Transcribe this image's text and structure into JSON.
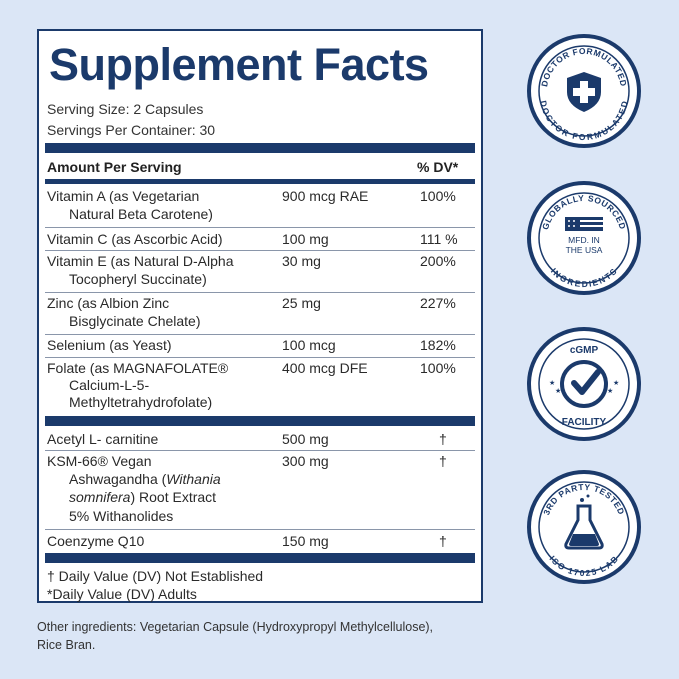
{
  "facts": {
    "title": "Supplement Facts",
    "serving_size": "Serving Size: 2 Capsules",
    "servings_per_container": "Servings Per Container: 30",
    "header_amount": "Amount Per Serving",
    "header_dv": "% DV*",
    "rows": [
      {
        "name": "Vitamin A (as Vegetarian",
        "name2": "Natural Beta Carotene)",
        "amount": "900 mcg RAE",
        "dv": "100%"
      },
      {
        "name": "Vitamin C (as Ascorbic Acid)",
        "name2": "",
        "amount": "100 mg",
        "dv": "111 %"
      },
      {
        "name": "Vitamin E (as Natural D-Alpha",
        "name2": "Tocopheryl Succinate)",
        "amount": "30   mg",
        "dv": "200%"
      },
      {
        "name": "Zinc (as Albion Zinc",
        "name2": "Bisglycinate Chelate)",
        "amount": "25   mg",
        "dv": "227%"
      },
      {
        "name": "Selenium (as Yeast)",
        "name2": "",
        "amount": "100 mcg",
        "dv": "182%"
      },
      {
        "name": "Folate (as MAGNAFOLATE®",
        "name2": "Calcium-L-5-",
        "name3": "Methyltetrahydrofolate)",
        "amount": "400 mcg DFE",
        "dv": "100%"
      },
      {
        "name": "Acetyl L- carnitine",
        "name2": "",
        "amount": "500 mg",
        "dv": "†"
      },
      {
        "name": "KSM-66® Vegan",
        "name2": "Ashwagandha (",
        "name2_italic": "Withania",
        "name3_italic": "somnifera",
        "name3": ") Root Extract",
        "name4": "5% Withanolides",
        "amount": "300 mg",
        "dv": "†"
      },
      {
        "name": "Coenzyme Q10",
        "name2": "",
        "amount": "150 mg",
        "dv": "†"
      }
    ],
    "footnote_1": "† Daily Value (DV) Not Established",
    "footnote_2": "*Daily Value (DV) Adults"
  },
  "other_ingredients": {
    "line1": "Other ingredients: Vegetarian Capsule (Hydroxypropyl Methylcellulose),",
    "line2": "Rice Bran."
  },
  "badges": [
    {
      "top": "DOCTOR FORMULATED",
      "bottom": "DOCTOR FORMULATED",
      "icon": "medical-cross-shield-icon"
    },
    {
      "top": "GLOBALLY SOURCED",
      "center": "MFD. IN THE USA",
      "center_l1": "MFD. IN",
      "center_l2": "THE USA",
      "bottom": "INGREDIENTS",
      "icon": "usa-flag-icon"
    },
    {
      "top": "cGMP",
      "bottom": "FACILITY",
      "icon": "checkmark-shield-icon"
    },
    {
      "top": "3RD PARTY TESTED",
      "bottom": "ISO 17025 LAB",
      "icon": "lab-flask-icon"
    }
  ],
  "colors": {
    "navy": "#1b3a6b",
    "background": "#dbe6f6"
  }
}
